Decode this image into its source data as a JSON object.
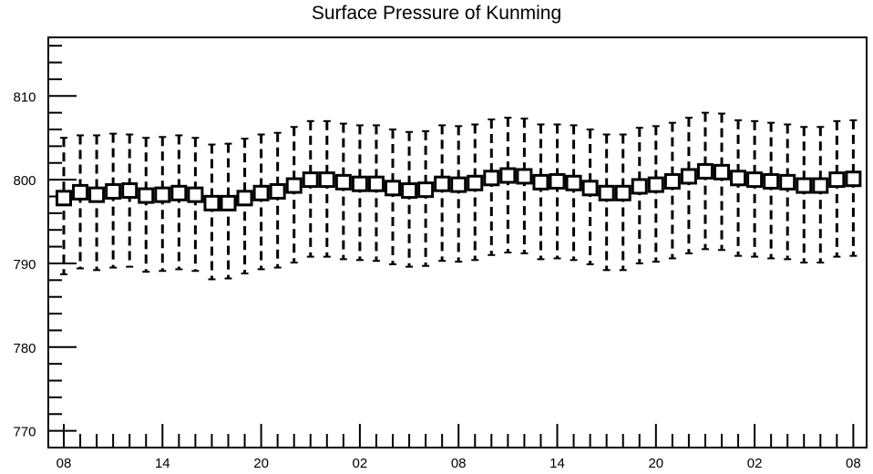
{
  "chart_data": {
    "type": "box",
    "title": "Surface Pressure of Kunming",
    "xlabel": "",
    "ylabel": "",
    "ylim": [
      768,
      817
    ],
    "y_ticks": [
      770,
      780,
      790,
      800,
      810
    ],
    "x_tick_labels": [
      "08",
      "14",
      "20",
      "02",
      "08",
      "14",
      "20",
      "02",
      "08"
    ],
    "x_tick_positions": [
      0,
      6,
      12,
      18,
      24,
      30,
      36,
      42,
      48
    ],
    "grid": false,
    "legend": "none",
    "series": [
      {
        "x": [
          0,
          1,
          2,
          3,
          4,
          5,
          6,
          7,
          8,
          9,
          10,
          11,
          12,
          13,
          14,
          15,
          16,
          17,
          18,
          19,
          20,
          21,
          22,
          23,
          24,
          25,
          26,
          27,
          28,
          29,
          30,
          31,
          32,
          33,
          34,
          35,
          36,
          37,
          38,
          39,
          40,
          41,
          42,
          43,
          44,
          45,
          46,
          47,
          48
        ],
        "center": [
          797.8,
          798.5,
          798.2,
          798.6,
          798.7,
          798.1,
          798.2,
          798.4,
          798.2,
          797.2,
          797.2,
          797.8,
          798.4,
          798.6,
          799.3,
          800.0,
          800.0,
          799.7,
          799.5,
          799.5,
          799.0,
          798.7,
          798.8,
          799.5,
          799.4,
          799.6,
          800.2,
          800.5,
          800.4,
          799.7,
          799.8,
          799.6,
          799.0,
          798.4,
          798.4,
          799.2,
          799.4,
          799.8,
          800.4,
          801.0,
          800.9,
          800.2,
          800.0,
          799.8,
          799.7,
          799.3,
          799.3,
          800.0,
          800.1
        ],
        "upper": [
          805.0,
          805.3,
          805.3,
          805.5,
          805.4,
          805.0,
          805.1,
          805.3,
          805.0,
          804.2,
          804.3,
          804.9,
          805.4,
          805.6,
          806.3,
          807.0,
          807.0,
          806.7,
          806.5,
          806.5,
          806.0,
          805.7,
          805.8,
          806.5,
          806.4,
          806.6,
          807.2,
          807.4,
          807.3,
          806.6,
          806.6,
          806.5,
          806.0,
          805.4,
          805.4,
          806.2,
          806.4,
          806.8,
          807.4,
          808.0,
          807.9,
          807.1,
          807.0,
          806.8,
          806.6,
          806.3,
          806.3,
          807.0,
          807.1
        ],
        "lower": [
          788.7,
          789.4,
          789.2,
          789.5,
          789.6,
          789.0,
          789.1,
          789.3,
          789.1,
          788.1,
          788.2,
          788.8,
          789.3,
          789.5,
          790.1,
          790.8,
          790.8,
          790.5,
          790.4,
          790.3,
          789.9,
          789.6,
          789.7,
          790.3,
          790.2,
          790.4,
          791.0,
          791.3,
          791.2,
          790.5,
          790.6,
          790.4,
          789.9,
          789.2,
          789.2,
          790.0,
          790.2,
          790.6,
          791.2,
          791.7,
          791.6,
          790.9,
          790.8,
          790.6,
          790.5,
          790.1,
          790.1,
          790.8,
          790.9
        ]
      }
    ]
  }
}
